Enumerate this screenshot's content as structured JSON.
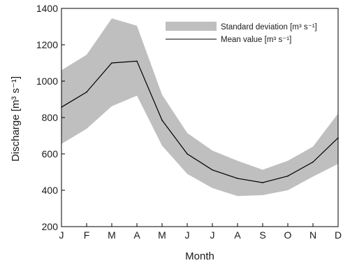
{
  "chart_data": {
    "type": "area",
    "title": "",
    "xlabel": "Month",
    "ylabel": "Discharge [m³ s⁻¹]",
    "categories": [
      "J",
      "F",
      "M",
      "A",
      "M",
      "J",
      "J",
      "A",
      "S",
      "O",
      "N",
      "D"
    ],
    "ylim": [
      200,
      1400
    ],
    "yticks": [
      200,
      400,
      600,
      800,
      1000,
      1200,
      1400
    ],
    "grid": false,
    "legend_position": "top-right",
    "series": [
      {
        "name": "Standard deviation [m³ s⁻¹]",
        "kind": "band",
        "color": "#bfbfbf",
        "upper": [
          1060,
          1145,
          1345,
          1305,
          925,
          715,
          618,
          562,
          513,
          562,
          640,
          822
        ],
        "lower": [
          655,
          738,
          862,
          920,
          645,
          490,
          412,
          368,
          373,
          400,
          475,
          545
        ]
      },
      {
        "name": "Mean value [m³ s⁻¹]",
        "kind": "line",
        "color": "#000000",
        "values": [
          857,
          940,
          1100,
          1110,
          785,
          600,
          512,
          465,
          442,
          478,
          555,
          688
        ]
      }
    ]
  }
}
